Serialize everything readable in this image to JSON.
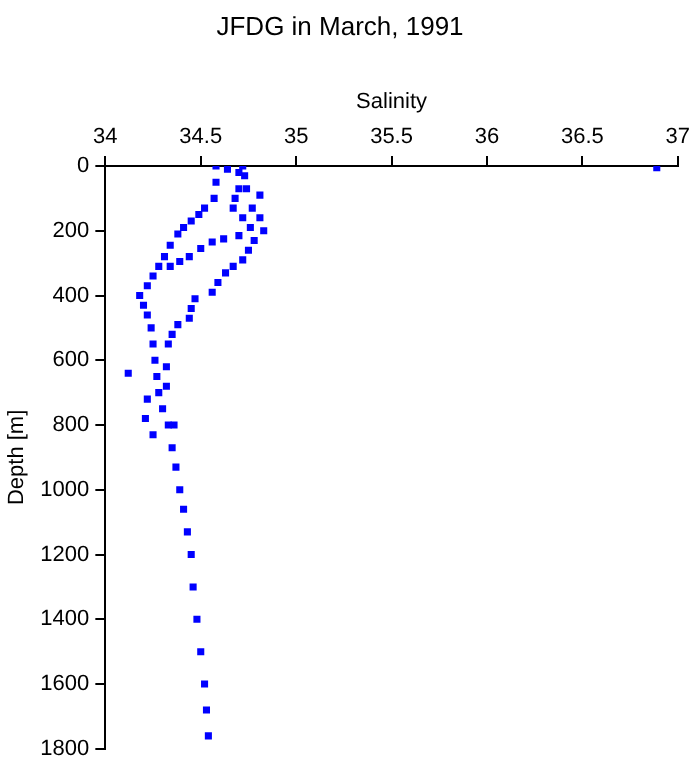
{
  "chart_data": {
    "type": "scatter",
    "title": "JFDG in March, 1991",
    "xlabel": "Salinity",
    "ylabel": "Depth [m]",
    "xlim": [
      34,
      37
    ],
    "xticks": [
      34,
      34.5,
      35,
      35.5,
      36,
      36.5,
      37
    ],
    "ylim": [
      1800,
      0
    ],
    "yticks": [
      0,
      200,
      400,
      600,
      800,
      1000,
      1200,
      1400,
      1600,
      1800
    ],
    "grid": false,
    "legend": false,
    "marker": "square",
    "series": [
      {
        "color": "#0000ff",
        "x": [
          36.89,
          34.72,
          34.73,
          34.74,
          34.81,
          34.77,
          34.81,
          34.83,
          34.78,
          34.75,
          34.72,
          34.67,
          34.63,
          34.59,
          34.56,
          34.47,
          34.45,
          34.44,
          34.38,
          34.35,
          34.33,
          34.7,
          34.7,
          34.68,
          34.67,
          34.72,
          34.76,
          34.7,
          34.62,
          34.56,
          34.5,
          34.44,
          34.39,
          34.34,
          34.58,
          34.64,
          34.58,
          34.57,
          34.52,
          34.49,
          34.45,
          34.41,
          34.38,
          34.34,
          34.31,
          34.28,
          34.25,
          34.22,
          34.18,
          34.2,
          34.22,
          34.24,
          34.25,
          34.26,
          34.12,
          34.27,
          34.28,
          34.22,
          34.3,
          34.21,
          34.33,
          34.25,
          34.35,
          34.37,
          34.39,
          34.41,
          34.43,
          34.45,
          34.46,
          34.48,
          34.5,
          34.52,
          34.53,
          34.54,
          34.32,
          34.32,
          34.36
        ],
        "values": [
          5,
          0,
          30,
          70,
          90,
          130,
          160,
          200,
          230,
          260,
          290,
          310,
          330,
          360,
          390,
          410,
          440,
          470,
          490,
          520,
          550,
          20,
          70,
          100,
          130,
          160,
          190,
          215,
          225,
          235,
          255,
          280,
          295,
          310,
          0,
          10,
          50,
          100,
          130,
          150,
          170,
          190,
          210,
          245,
          280,
          310,
          340,
          370,
          400,
          430,
          460,
          500,
          550,
          600,
          640,
          650,
          700,
          720,
          750,
          780,
          800,
          830,
          870,
          930,
          1000,
          1060,
          1130,
          1200,
          1300,
          1400,
          1500,
          1600,
          1680,
          1760,
          620,
          680,
          800
        ]
      }
    ]
  }
}
